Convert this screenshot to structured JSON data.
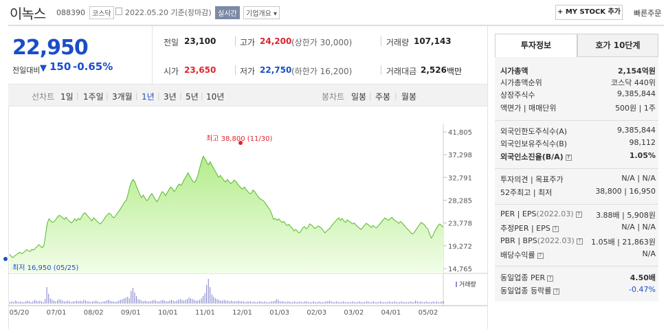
{
  "header": {
    "title": "이녹스",
    "code": "088390",
    "exchange": "코스닥",
    "date": "2022.05.20 기준(장마감)",
    "realtime": "실시간",
    "company_info": "기업개요 ▾",
    "mystock_label": "+ MY STOCK 추가",
    "quick_order": "빠른주문"
  },
  "price": {
    "current": "22,950",
    "compare_label": "전일대비",
    "arrow": "▼",
    "change": "150",
    "change_pct": "-0.65%"
  },
  "quote": {
    "prev_label": "전일",
    "prev": "23,100",
    "high_label": "고가",
    "high": "24,200",
    "upper_limit": "(상한가 30,000)",
    "volume_label": "거래량",
    "volume": "107,143",
    "open_label": "시가",
    "open": "23,650",
    "low_label": "저가",
    "low": "22,750",
    "lower_limit": "(하한가 16,200)",
    "amount_label": "거래대금",
    "amount": "2,526",
    "amount_unit": "백만"
  },
  "periods": {
    "line_label": "선차트",
    "line_items": [
      "1일",
      "1주일",
      "3개월",
      "1년",
      "3년",
      "5년",
      "10년"
    ],
    "active": "1년",
    "candle_label": "봉차트",
    "candle_items": [
      "일봉",
      "주봉",
      "월봉"
    ]
  },
  "chart_data": {
    "type": "area",
    "y_ticks": [
      "41,805",
      "37,298",
      "32,791",
      "28,285",
      "23,778",
      "19,272",
      "14,765"
    ],
    "ylim": [
      14765,
      41805
    ],
    "x_ticks": [
      "05/20",
      "07/01",
      "08/02",
      "09/01",
      "10/01",
      "11/01",
      "12/01",
      "01/03",
      "02/03",
      "03/02",
      "04/01",
      "05/02"
    ],
    "max_label": "최고 38,800 (11/30)",
    "min_label": "최저 16,950 (05/25)",
    "volume_legend": "거래량",
    "price_series": [
      17600,
      17100,
      16950,
      17300,
      17500,
      17800,
      18000,
      17700,
      17900,
      18200,
      18500,
      18300,
      18100,
      18600,
      18400,
      18800,
      19100,
      19500,
      19200,
      18900,
      19300,
      21500,
      23800,
      24600,
      24200,
      23900,
      24100,
      24500,
      25000,
      25300,
      25100,
      24800,
      24500,
      24900,
      24400,
      24100,
      23800,
      24100,
      24600,
      24200,
      24700,
      24400,
      25000,
      25600,
      25800,
      25400,
      25000,
      24600,
      24200,
      24800,
      24500,
      24100,
      23800,
      23600,
      24000,
      24500,
      25000,
      25400,
      25700,
      25500,
      25000,
      24800,
      25300,
      25800,
      26200,
      26800,
      27300,
      27900,
      28200,
      29400,
      30900,
      31800,
      32400,
      32000,
      31000,
      30200,
      29400,
      28800,
      29300,
      28700,
      28200,
      28500,
      29200,
      29600,
      29000,
      28400,
      28000,
      28600,
      29400,
      30000,
      29700,
      29200,
      29800,
      30400,
      30900,
      30600,
      30000,
      30400,
      31100,
      31500,
      31200,
      31800,
      32500,
      33000,
      33700,
      33100,
      32500,
      32000,
      31800,
      32500,
      33400,
      34800,
      36000,
      37000,
      36500,
      35800,
      35300,
      35900,
      35200,
      34600,
      34000,
      33400,
      32800,
      33200,
      32700,
      32200,
      31900,
      32400,
      32000,
      31600,
      31800,
      32300,
      32000,
      31500,
      31100,
      30700,
      30500,
      30900,
      30400,
      30000,
      29600,
      29700,
      30300,
      30000,
      29500,
      29000,
      28600,
      28400,
      28200,
      27800,
      27300,
      26800,
      26300,
      25500,
      24500,
      24700,
      24300,
      24600,
      24200,
      23900,
      24100,
      23600,
      23300,
      23500,
      23000,
      22700,
      22200,
      22500,
      22100,
      21800,
      22200,
      22800,
      23100,
      22600,
      22900,
      23600,
      23400,
      23100,
      22700,
      22900,
      23200,
      23000,
      22700,
      22300,
      21800,
      22200,
      22500,
      22800,
      23300,
      23700,
      24100,
      24500,
      24800,
      24300,
      24700,
      24200,
      23900,
      24400,
      24100,
      23900,
      23600,
      23800,
      23400,
      23100,
      22800,
      22500,
      22900,
      23300,
      23700,
      23500,
      23200,
      22900,
      23300,
      23000,
      22800,
      23200,
      23600,
      24000,
      24400,
      24800,
      24500,
      24300,
      24600,
      24900,
      24500,
      24200,
      24000,
      23700,
      24100,
      23800,
      23400,
      23000,
      22600,
      22300,
      21900,
      21600,
      21900,
      22400,
      22900,
      23400,
      23900,
      23700,
      23400,
      22900,
      22600,
      21600,
      20800,
      21300,
      22100,
      22700,
      23300,
      23600,
      23300,
      22950
    ],
    "volume_series": [
      2,
      3,
      2,
      4,
      3,
      2,
      3,
      2,
      2,
      3,
      4,
      3,
      2,
      3,
      5,
      4,
      3,
      4,
      3,
      2,
      6,
      22,
      13,
      7,
      5,
      4,
      3,
      4,
      6,
      5,
      4,
      3,
      3,
      4,
      3,
      2,
      3,
      3,
      4,
      3,
      4,
      3,
      5,
      4,
      3,
      3,
      2,
      3,
      3,
      4,
      3,
      2,
      2,
      3,
      3,
      4,
      5,
      4,
      3,
      3,
      2,
      3,
      4,
      5,
      6,
      7,
      8,
      9,
      7,
      17,
      21,
      15,
      10,
      6,
      5,
      4,
      3,
      4,
      3,
      3,
      3,
      4,
      5,
      4,
      3,
      3,
      4,
      5,
      4,
      3,
      3,
      4,
      5,
      4,
      3,
      4,
      5,
      6,
      5,
      4,
      5,
      6,
      8,
      7,
      6,
      5,
      4,
      4,
      5,
      7,
      10,
      14,
      25,
      33,
      22,
      12,
      9,
      7,
      6,
      5,
      4,
      4,
      5,
      4,
      4,
      3,
      4,
      3,
      3,
      3,
      4,
      3,
      3,
      3,
      2,
      3,
      3,
      3,
      2,
      3,
      2,
      2,
      3,
      3,
      2,
      3,
      2,
      2,
      2,
      3,
      3,
      4,
      6,
      4,
      3,
      3,
      3,
      2,
      3,
      3,
      2,
      2,
      3,
      2,
      2,
      3,
      2,
      2,
      3,
      3,
      2,
      2,
      2,
      3,
      2,
      2,
      3,
      2,
      2,
      2,
      3,
      3,
      4,
      3,
      2,
      2,
      3,
      2,
      2,
      2,
      3,
      2,
      2,
      2,
      2,
      3,
      2,
      2,
      2,
      3,
      2,
      2,
      2,
      3,
      3,
      2,
      2,
      3,
      2,
      2,
      2,
      3,
      2,
      2,
      2,
      2,
      3,
      2,
      2,
      3,
      2,
      2,
      2,
      3,
      2,
      2,
      2,
      2,
      3,
      2,
      2,
      4,
      3,
      2,
      3,
      2,
      2,
      3,
      2,
      2,
      2,
      3,
      2,
      3,
      2,
      2,
      3,
      3
    ]
  },
  "investment": {
    "tab_active": "투자정보",
    "tab_other": "호가 10단계",
    "market_cap_label": "시가총액",
    "market_cap": "2,154억원",
    "market_cap_rank_label": "시가총액순위",
    "market_cap_rank": "코스닥 440위",
    "listed_shares_label": "상장주식수",
    "listed_shares": "9,385,844",
    "par_label": "액면가 | 매매단위",
    "par": "500원 | 1주",
    "foreign_limit_label": "외국인한도주식수(A)",
    "foreign_limit": "9,385,844",
    "foreign_hold_label": "외국인보유주식수(B)",
    "foreign_hold": "98,112",
    "foreign_ratio_label": "외국인소진율(B/A)",
    "foreign_ratio": "1.05%",
    "opinion_label": "투자의견 | 목표주가",
    "opinion": "N/A | N/A",
    "w52_label": "52주최고 | 최저",
    "w52": "38,800 | 16,950",
    "per_label": "PER | EPS",
    "per_period": "(2022.03)",
    "per": "3.88배 | 5,908원",
    "est_per_label": "추정PER | EPS",
    "est_per": "N/A | N/A",
    "pbr_label": "PBR | BPS",
    "pbr_period": "(2022.03)",
    "pbr": "1.05배 | 21,863원",
    "dividend_label": "배당수익률",
    "dividend": "N/A",
    "sector_per_label": "동일업종 PER",
    "sector_per": "4.50배",
    "sector_rate_label": "동일업종 등락률",
    "sector_rate": "-0.47%"
  }
}
